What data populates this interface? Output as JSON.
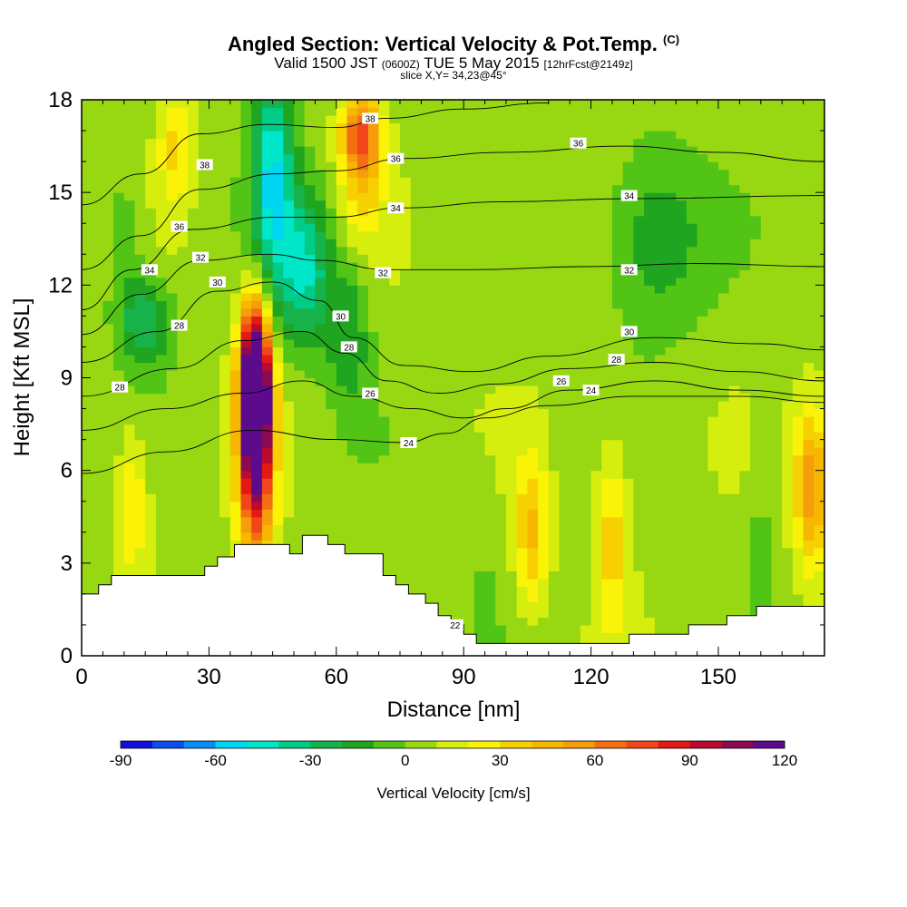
{
  "title": {
    "main": "Angled Section: Vertical Velocity & Pot.Temp.",
    "main_tag": "(C)",
    "valid_prefix": "Valid 1500 JST",
    "valid_z": "(0600Z)",
    "valid_date": "TUE 5 May 2015",
    "forecast": "[12hrFcst@2149z]",
    "slice": "slice X,Y= 34,23@45°"
  },
  "chart_data": {
    "type": "heatmap",
    "xlabel": "Distance [nm]",
    "ylabel": "Height [Kft MSL]",
    "xlim": [
      0,
      175
    ],
    "ylim": [
      0,
      18
    ],
    "x_ticks": [
      0,
      30,
      60,
      90,
      120,
      150
    ],
    "y_ticks": [
      0,
      3,
      6,
      9,
      12,
      15,
      18
    ],
    "colorbar": {
      "label": "Vertical Velocity [cm/s]",
      "ticks": [
        -90,
        -60,
        -30,
        0,
        30,
        60,
        90,
        120
      ],
      "levels": [
        -90,
        120
      ],
      "colors": [
        "#1010dd",
        "#0a4ef0",
        "#0a8cf5",
        "#00d6f2",
        "#00e6c8",
        "#00cc88",
        "#17b24a",
        "#1fa51f",
        "#52c416",
        "#98d812",
        "#d6ee0e",
        "#fbf307",
        "#f6d000",
        "#f7b600",
        "#f59d0b",
        "#f36f12",
        "#f1451a",
        "#e31a14",
        "#b80b2e",
        "#8b0a52",
        "#5b0b8c"
      ]
    },
    "ground_profile": [
      [
        0,
        2.0
      ],
      [
        4,
        2.3
      ],
      [
        7,
        2.6
      ],
      [
        29,
        2.9
      ],
      [
        32,
        3.2
      ],
      [
        36,
        3.6
      ],
      [
        49,
        3.3
      ],
      [
        52,
        3.9
      ],
      [
        58,
        3.6
      ],
      [
        62,
        3.3
      ],
      [
        71,
        2.6
      ],
      [
        74,
        2.3
      ],
      [
        77,
        2.0
      ],
      [
        81,
        1.7
      ],
      [
        84,
        1.3
      ],
      [
        87,
        1.0
      ],
      [
        90,
        0.7
      ],
      [
        93,
        0.4
      ],
      [
        129,
        0.7
      ],
      [
        143,
        1.0
      ],
      [
        152,
        1.3
      ],
      [
        159,
        1.6
      ],
      [
        175,
        1.6
      ]
    ],
    "theta_contours": [
      {
        "label": "24",
        "points": [
          [
            0,
            5.9
          ],
          [
            20,
            6.6
          ],
          [
            40,
            7.3
          ],
          [
            60,
            7.0
          ],
          [
            76,
            6.9
          ],
          [
            86,
            7.2
          ],
          [
            95,
            7.7
          ],
          [
            110,
            8.1
          ],
          [
            130,
            8.4
          ],
          [
            155,
            8.4
          ],
          [
            175,
            8.2
          ]
        ]
      },
      {
        "label": "26",
        "points": [
          [
            0,
            7.3
          ],
          [
            20,
            8.0
          ],
          [
            38,
            8.5
          ],
          [
            52,
            8.9
          ],
          [
            64,
            8.4
          ],
          [
            78,
            8.0
          ],
          [
            90,
            7.7
          ],
          [
            100,
            8.0
          ],
          [
            115,
            8.6
          ],
          [
            135,
            8.9
          ],
          [
            155,
            8.6
          ],
          [
            175,
            8.4
          ]
        ]
      },
      {
        "label": "28",
        "points": [
          [
            0,
            8.4
          ],
          [
            22,
            9.3
          ],
          [
            38,
            10.2
          ],
          [
            52,
            10.5
          ],
          [
            62,
            9.8
          ],
          [
            72,
            8.9
          ],
          [
            84,
            8.5
          ],
          [
            98,
            8.8
          ],
          [
            115,
            9.3
          ],
          [
            135,
            9.5
          ],
          [
            155,
            9.2
          ],
          [
            175,
            8.9
          ]
        ]
      },
      {
        "label": "30",
        "points": [
          [
            0,
            9.5
          ],
          [
            18,
            10.5
          ],
          [
            32,
            11.8
          ],
          [
            45,
            12.1
          ],
          [
            56,
            11.5
          ],
          [
            64,
            10.3
          ],
          [
            76,
            9.4
          ],
          [
            92,
            9.2
          ],
          [
            110,
            9.7
          ],
          [
            135,
            10.3
          ],
          [
            160,
            10.1
          ],
          [
            175,
            9.9
          ]
        ]
      },
      {
        "label": "32",
        "points": [
          [
            0,
            10.4
          ],
          [
            14,
            11.7
          ],
          [
            28,
            12.8
          ],
          [
            44,
            13.0
          ],
          [
            56,
            12.8
          ],
          [
            72,
            12.5
          ],
          [
            92,
            12.5
          ],
          [
            120,
            12.6
          ],
          [
            145,
            12.7
          ],
          [
            175,
            12.6
          ]
        ]
      },
      {
        "label": "34",
        "points": [
          [
            0,
            11.2
          ],
          [
            12,
            12.5
          ],
          [
            26,
            13.8
          ],
          [
            46,
            14.2
          ],
          [
            60,
            14.2
          ],
          [
            75,
            14.5
          ],
          [
            100,
            14.7
          ],
          [
            130,
            14.8
          ],
          [
            175,
            14.9
          ]
        ]
      },
      {
        "label": "36",
        "points": [
          [
            0,
            12.5
          ],
          [
            14,
            13.6
          ],
          [
            28,
            15.1
          ],
          [
            46,
            15.6
          ],
          [
            60,
            15.7
          ],
          [
            76,
            16.1
          ],
          [
            100,
            16.3
          ],
          [
            128,
            16.5
          ],
          [
            150,
            16.3
          ],
          [
            175,
            16.0
          ]
        ]
      },
      {
        "label": "38",
        "points": [
          [
            0,
            14.6
          ],
          [
            14,
            15.6
          ],
          [
            28,
            16.9
          ],
          [
            44,
            17.2
          ],
          [
            60,
            17.1
          ],
          [
            72,
            17.4
          ],
          [
            90,
            17.7
          ],
          [
            110,
            17.9
          ]
        ]
      }
    ],
    "contour_labels": [
      {
        "text": "38",
        "x": 68,
        "y": 17.4
      },
      {
        "text": "36",
        "x": 117,
        "y": 16.6
      },
      {
        "text": "36",
        "x": 74,
        "y": 16.1
      },
      {
        "text": "38",
        "x": 29,
        "y": 15.9
      },
      {
        "text": "34",
        "x": 129,
        "y": 14.9
      },
      {
        "text": "34",
        "x": 74,
        "y": 14.5
      },
      {
        "text": "36",
        "x": 23,
        "y": 13.9
      },
      {
        "text": "32",
        "x": 28,
        "y": 12.9
      },
      {
        "text": "34",
        "x": 16,
        "y": 12.5
      },
      {
        "text": "32",
        "x": 71,
        "y": 12.4
      },
      {
        "text": "32",
        "x": 129,
        "y": 12.5
      },
      {
        "text": "30",
        "x": 32,
        "y": 12.1
      },
      {
        "text": "30",
        "x": 61,
        "y": 11.0
      },
      {
        "text": "28",
        "x": 23,
        "y": 10.7
      },
      {
        "text": "28",
        "x": 63,
        "y": 10.0
      },
      {
        "text": "30",
        "x": 129,
        "y": 10.5
      },
      {
        "text": "28",
        "x": 126,
        "y": 9.6
      },
      {
        "text": "28",
        "x": 9,
        "y": 8.7
      },
      {
        "text": "26",
        "x": 113,
        "y": 8.9
      },
      {
        "text": "24",
        "x": 120,
        "y": 8.6
      },
      {
        "text": "26",
        "x": 68,
        "y": 8.5
      },
      {
        "text": "24",
        "x": 77,
        "y": 6.9
      },
      {
        "text": "22",
        "x": 88,
        "y": 1.0
      }
    ],
    "vv_anomalies": [
      {
        "x": 41,
        "y": 9.0,
        "value": 120,
        "sx": 3.5,
        "sy": 2.5
      },
      {
        "x": 41,
        "y": 6.5,
        "value": 95,
        "sx": 4,
        "sy": 3.5
      },
      {
        "x": 45,
        "y": 15.5,
        "value": -55,
        "sx": 5,
        "sy": 4
      },
      {
        "x": 53,
        "y": 12.5,
        "value": -45,
        "sx": 6,
        "sy": 2.5
      },
      {
        "x": 63,
        "y": 10.5,
        "value": -25,
        "sx": 5,
        "sy": 2.5
      },
      {
        "x": 66,
        "y": 17.0,
        "value": 55,
        "sx": 4.5,
        "sy": 1.2
      },
      {
        "x": 66,
        "y": 15.5,
        "value": 30,
        "sx": 5,
        "sy": 2
      },
      {
        "x": 22,
        "y": 16.5,
        "value": 25,
        "sx": 4,
        "sy": 2
      },
      {
        "x": 15,
        "y": 10.8,
        "value": -35,
        "sx": 6,
        "sy": 1.5
      },
      {
        "x": 12,
        "y": 5.0,
        "value": 25,
        "sx": 4,
        "sy": 2.5
      },
      {
        "x": 106,
        "y": 4.0,
        "value": 35,
        "sx": 4,
        "sy": 2.5
      },
      {
        "x": 125,
        "y": 4.0,
        "value": 30,
        "sx": 4,
        "sy": 3
      },
      {
        "x": 172,
        "y": 5.5,
        "value": 55,
        "sx": 4,
        "sy": 2.5
      },
      {
        "x": 95,
        "y": 3.5,
        "value": -5,
        "sx": 4,
        "sy": 3
      },
      {
        "x": 115,
        "y": 4.5,
        "value": -5,
        "sx": 2.5,
        "sy": 3
      },
      {
        "x": 160,
        "y": 4.5,
        "value": -10,
        "sx": 3,
        "sy": 3
      },
      {
        "x": 135,
        "y": 13.5,
        "value": -25,
        "sx": 12,
        "sy": 3
      },
      {
        "x": 10,
        "y": 13.5,
        "value": -15,
        "sx": 5,
        "sy": 2.5
      }
    ]
  }
}
